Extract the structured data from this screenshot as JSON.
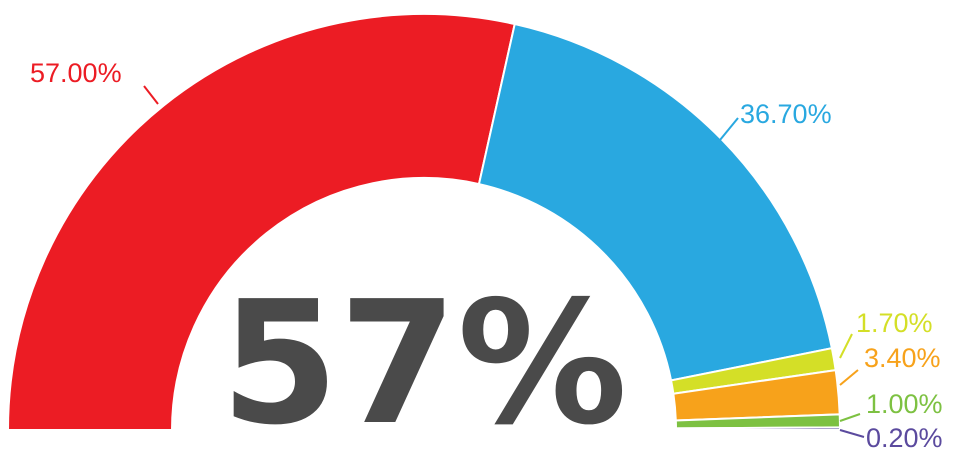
{
  "chart_data": {
    "type": "pie",
    "style": "semicircle-donut",
    "center_label": "57%",
    "slices": [
      {
        "label": "57.00%",
        "value": 57.0,
        "color": "#ec1c24"
      },
      {
        "label": "36.70%",
        "value": 36.7,
        "color": "#29a8e0"
      },
      {
        "label": "1.70%",
        "value": 1.7,
        "color": "#d4df27"
      },
      {
        "label": "3.40%",
        "value": 3.4,
        "color": "#f7a21b"
      },
      {
        "label": "1.00%",
        "value": 1.0,
        "color": "#7dc142"
      },
      {
        "label": "0.20%",
        "value": 0.2,
        "color": "#5b4a9e"
      }
    ]
  }
}
